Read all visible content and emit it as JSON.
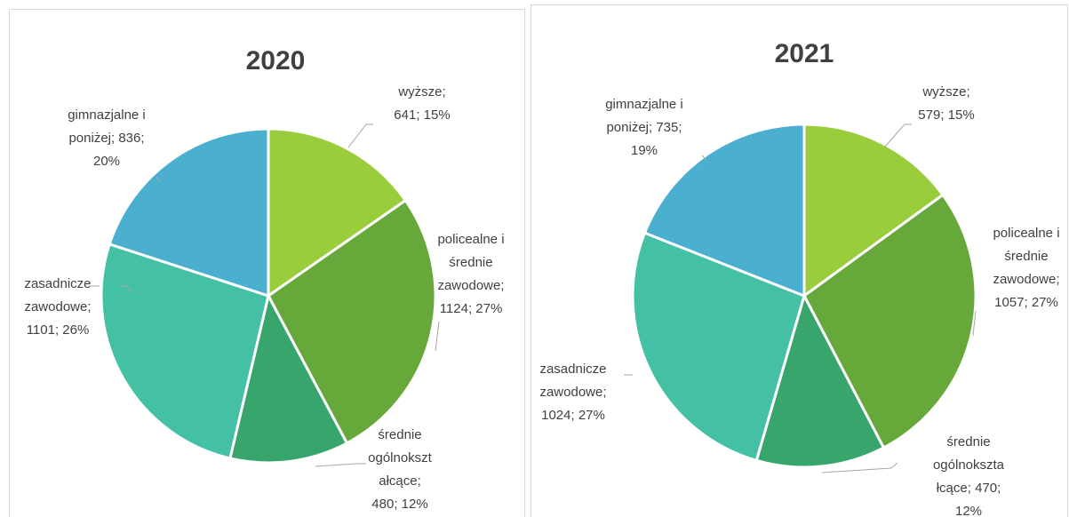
{
  "chart_data": [
    {
      "type": "pie",
      "title": "2020",
      "categories": [
        "wyższe",
        "policealne i średnie zawodowe",
        "średnie ogólnokształcące",
        "zasadnicze zawodowe",
        "gimnazjalne i poniżej"
      ],
      "values": [
        641,
        1124,
        480,
        1101,
        836
      ],
      "value_labels": [
        [
          "wyższe;",
          "641; 15%"
        ],
        [
          "policealne i",
          "średnie",
          "zawodowe;",
          "1124; 27%"
        ],
        [
          "średnie",
          "ogólnokszt",
          "ałcące;",
          "480; 12%"
        ],
        [
          "zasadnicze",
          "zawodowe;",
          "1101; 26%"
        ],
        [
          "gimnazjalne i",
          "poniżej; 836;",
          "20%"
        ]
      ],
      "colors": [
        "#9acd3c",
        "#66a83a",
        "#38a66c",
        "#44c0a4",
        "#4bafd0"
      ]
    },
    {
      "type": "pie",
      "title": "2021",
      "categories": [
        "wyższe",
        "policealne i średnie zawodowe",
        "średnie ogólnokształcące",
        "zasadnicze zawodowe",
        "gimnazjalne i poniżej"
      ],
      "values": [
        579,
        1057,
        470,
        1024,
        735
      ],
      "value_labels": [
        [
          "wyższe;",
          "579; 15%"
        ],
        [
          "policealne i",
          "średnie",
          "zawodowe;",
          "1057; 27%"
        ],
        [
          "średnie",
          "ogólnokszta",
          "łcące; 470;",
          "12%"
        ],
        [
          "zasadnicze",
          "zawodowe;",
          "1024; 27%"
        ],
        [
          "gimnazjalne i",
          "poniżej; 735;",
          "19%"
        ]
      ],
      "colors": [
        "#9acd3c",
        "#66a83a",
        "#38a66c",
        "#44c0a4",
        "#4bafd0"
      ]
    }
  ]
}
